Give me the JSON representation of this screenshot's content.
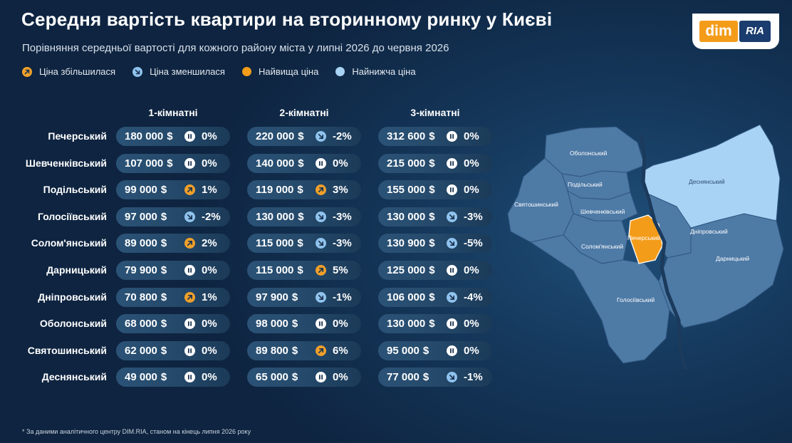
{
  "header": {
    "title": "Середня вартість квартири на вторинному ринку у Києві",
    "subtitle": "Порівняння середньої вартості для кожного району міста у липні 2026 до червня 2026"
  },
  "logo": {
    "left": "dim",
    "right": "RIA"
  },
  "legend": [
    {
      "label": "Ціна збільшилася",
      "icon": "up-arrow-icon"
    },
    {
      "label": "Ціна зменшилася",
      "icon": "down-arrow-icon"
    },
    {
      "label": "Найвища ціна",
      "icon": "orange-dot-icon"
    },
    {
      "label": "Найнижча ціна",
      "icon": "light-blue-dot-icon"
    }
  ],
  "colors": {
    "up": "#f0a02a",
    "down": "#8fc3ee",
    "same": "#ffffff",
    "highest": "#f39c1a",
    "lowest": "#a9d3f5",
    "district": "#4e7aa6"
  },
  "chart_data": {
    "type": "table",
    "columns": [
      "1-кімнатні",
      "2-кімнатні",
      "3-кімнатні"
    ],
    "currency": "$",
    "rows": [
      {
        "district": "Печерський",
        "cells": [
          {
            "price": "180 000",
            "change": "0%",
            "dir": "same"
          },
          {
            "price": "220 000",
            "change": "-2%",
            "dir": "down"
          },
          {
            "price": "312 600",
            "change": "0%",
            "dir": "same"
          }
        ]
      },
      {
        "district": "Шевченківський",
        "cells": [
          {
            "price": "107 000",
            "change": "0%",
            "dir": "same"
          },
          {
            "price": "140 000",
            "change": "0%",
            "dir": "same"
          },
          {
            "price": "215 000",
            "change": "0%",
            "dir": "same"
          }
        ]
      },
      {
        "district": "Подільський",
        "cells": [
          {
            "price": "99 000",
            "change": "1%",
            "dir": "up"
          },
          {
            "price": "119 000",
            "change": "3%",
            "dir": "up"
          },
          {
            "price": "155 000",
            "change": "0%",
            "dir": "same"
          }
        ]
      },
      {
        "district": "Голосіївський",
        "cells": [
          {
            "price": "97 000",
            "change": "-2%",
            "dir": "down"
          },
          {
            "price": "130 000",
            "change": "-3%",
            "dir": "down"
          },
          {
            "price": "130 000",
            "change": "-3%",
            "dir": "down"
          }
        ]
      },
      {
        "district": "Солом'янський",
        "cells": [
          {
            "price": "89 000",
            "change": "2%",
            "dir": "up"
          },
          {
            "price": "115 000",
            "change": "-3%",
            "dir": "down"
          },
          {
            "price": "130 900",
            "change": "-5%",
            "dir": "down"
          }
        ]
      },
      {
        "district": "Дарницький",
        "cells": [
          {
            "price": "79 900",
            "change": "0%",
            "dir": "same"
          },
          {
            "price": "115 000",
            "change": "5%",
            "dir": "up"
          },
          {
            "price": "125 000",
            "change": "0%",
            "dir": "same"
          }
        ]
      },
      {
        "district": "Дніпровський",
        "cells": [
          {
            "price": "70 800",
            "change": "1%",
            "dir": "up"
          },
          {
            "price": "97 900",
            "change": "-1%",
            "dir": "down"
          },
          {
            "price": "106 000",
            "change": "-4%",
            "dir": "down"
          }
        ]
      },
      {
        "district": "Оболонський",
        "cells": [
          {
            "price": "68 000",
            "change": "0%",
            "dir": "same"
          },
          {
            "price": "98 000",
            "change": "0%",
            "dir": "same"
          },
          {
            "price": "130 000",
            "change": "0%",
            "dir": "same"
          }
        ]
      },
      {
        "district": "Святошинський",
        "cells": [
          {
            "price": "62 000",
            "change": "0%",
            "dir": "same"
          },
          {
            "price": "89 800",
            "change": "6%",
            "dir": "up"
          },
          {
            "price": "95 000",
            "change": "0%",
            "dir": "same"
          }
        ]
      },
      {
        "district": "Деснянський",
        "cells": [
          {
            "price": "49 000",
            "change": "0%",
            "dir": "same"
          },
          {
            "price": "65 000",
            "change": "0%",
            "dir": "same"
          },
          {
            "price": "77 000",
            "change": "-1%",
            "dir": "down"
          }
        ]
      }
    ]
  },
  "map": {
    "highest_district": "Печерський",
    "lowest_district": "Деснянський",
    "labels": {
      "obolonskyi": "Оболонський",
      "podilskyi": "Подільський",
      "desnianskyi": "Деснянський",
      "sviatoshynskyi": "Святошинський",
      "shevchenkivskyi": "Шевченківський",
      "pecherskyi": "Печерський",
      "dniprovskyi": "Дніпровський",
      "solomianskyi": "Солом'янський",
      "darnytskyi": "Дарницький",
      "holosiivskyi": "Голосіївський"
    }
  },
  "footnote": "* За даними аналітичного центру DIM.RIA, станом на кінець липня 2026 року"
}
